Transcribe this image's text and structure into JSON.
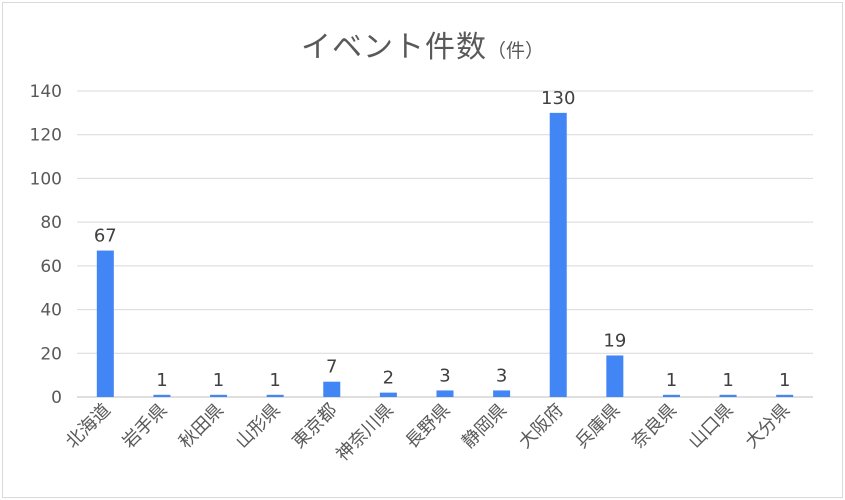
{
  "chart_data": {
    "type": "bar",
    "title": "イベント件数",
    "title_unit": "（件）",
    "xlabel": "",
    "ylabel": "",
    "categories": [
      "北海道",
      "岩手県",
      "秋田県",
      "山形県",
      "東京都",
      "神奈川県",
      "長野県",
      "静岡県",
      "大阪府",
      "兵庫県",
      "奈良県",
      "山口県",
      "大分県"
    ],
    "values": [
      67,
      1,
      1,
      1,
      7,
      2,
      3,
      3,
      130,
      19,
      1,
      1,
      1
    ],
    "ylim": [
      0,
      140
    ],
    "yticks": [
      0,
      20,
      40,
      60,
      80,
      100,
      120,
      140
    ],
    "grid": true,
    "legend": "none",
    "bar_color": "#4285f4"
  }
}
